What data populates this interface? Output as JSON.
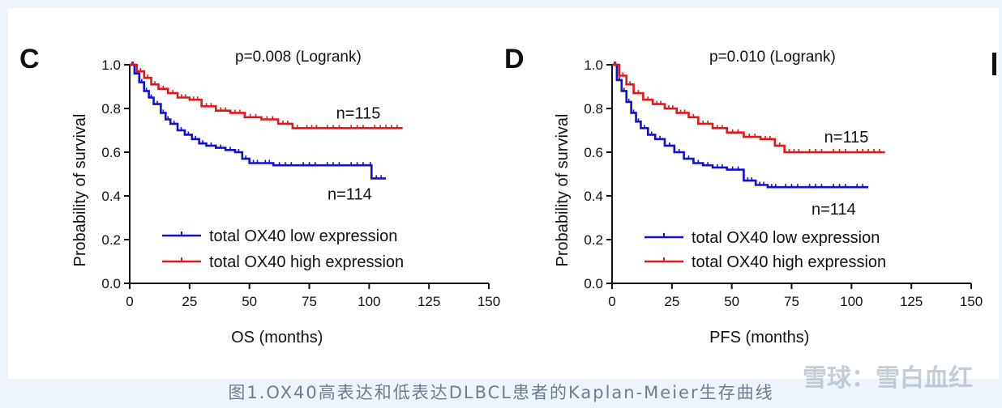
{
  "caption": "图1.OX40高表达和低表达DLBCL患者的Kaplan-Meier生存曲线",
  "watermark": "雪球：雪白血红",
  "colors": {
    "low": "#1010cc",
    "high": "#e01818",
    "axis": "#111111"
  },
  "chart_data": [
    {
      "type": "line",
      "panel_letter": "C",
      "p_value_text": "p=0.008 (Logrank)",
      "xlabel": "OS (months)",
      "ylabel": "Probability of survival",
      "xlim": [
        0,
        150
      ],
      "ylim": [
        0,
        1.0
      ],
      "xticks": [
        "0",
        "25",
        "50",
        "75",
        "100",
        "125",
        "150"
      ],
      "yticks": [
        "0.0",
        "0.2",
        "0.4",
        "0.6",
        "0.8",
        "1.0"
      ],
      "legend": [
        "total OX40 low expression",
        "total OX40 high expression"
      ],
      "series": [
        {
          "name": "total OX40 low expression",
          "color_key": "low",
          "n_label": "n=114",
          "x": [
            0,
            2,
            4,
            6,
            8,
            10,
            13,
            15,
            17,
            20,
            23,
            26,
            29,
            32,
            36,
            40,
            44,
            47,
            50,
            55,
            60,
            70,
            80,
            90,
            100,
            101,
            107
          ],
          "y": [
            1.0,
            0.96,
            0.92,
            0.88,
            0.85,
            0.82,
            0.78,
            0.75,
            0.73,
            0.7,
            0.68,
            0.66,
            0.64,
            0.63,
            0.62,
            0.61,
            0.6,
            0.57,
            0.55,
            0.55,
            0.54,
            0.54,
            0.54,
            0.54,
            0.54,
            0.48,
            0.48
          ]
        },
        {
          "name": "total OX40 high expression",
          "color_key": "high",
          "n_label": "n=115",
          "x": [
            0,
            3,
            6,
            9,
            12,
            16,
            20,
            25,
            30,
            36,
            42,
            48,
            55,
            62,
            68,
            72,
            80,
            90,
            100,
            114
          ],
          "y": [
            1.0,
            0.97,
            0.94,
            0.91,
            0.89,
            0.87,
            0.85,
            0.84,
            0.81,
            0.79,
            0.78,
            0.76,
            0.75,
            0.73,
            0.71,
            0.71,
            0.71,
            0.71,
            0.71,
            0.71
          ]
        }
      ]
    },
    {
      "type": "line",
      "panel_letter": "D",
      "p_value_text": "p=0.010 (Logrank)",
      "xlabel": "PFS (months)",
      "ylabel": "Probability of survival",
      "xlim": [
        0,
        150
      ],
      "ylim": [
        0,
        1.0
      ],
      "xticks": [
        "0",
        "25",
        "50",
        "75",
        "100",
        "125",
        "150"
      ],
      "yticks": [
        "0.0",
        "0.2",
        "0.4",
        "0.6",
        "0.8",
        "1.0"
      ],
      "legend": [
        "total OX40 low expression",
        "total OX40 high expression"
      ],
      "series": [
        {
          "name": "total OX40 low expression",
          "color_key": "low",
          "n_label": "n=114",
          "x": [
            0,
            2,
            4,
            6,
            8,
            10,
            12,
            15,
            18,
            22,
            26,
            30,
            34,
            38,
            42,
            48,
            55,
            60,
            65,
            70,
            80,
            90,
            100,
            107
          ],
          "y": [
            1.0,
            0.93,
            0.88,
            0.83,
            0.78,
            0.74,
            0.71,
            0.68,
            0.66,
            0.63,
            0.6,
            0.57,
            0.55,
            0.54,
            0.53,
            0.52,
            0.47,
            0.45,
            0.44,
            0.44,
            0.44,
            0.44,
            0.44,
            0.44
          ]
        },
        {
          "name": "total OX40 high expression",
          "color_key": "high",
          "n_label": "n=115",
          "x": [
            0,
            3,
            6,
            9,
            13,
            17,
            22,
            27,
            32,
            36,
            42,
            48,
            55,
            62,
            68,
            72,
            80,
            90,
            100,
            114
          ],
          "y": [
            1.0,
            0.95,
            0.91,
            0.87,
            0.84,
            0.82,
            0.8,
            0.78,
            0.76,
            0.73,
            0.71,
            0.69,
            0.67,
            0.66,
            0.63,
            0.6,
            0.6,
            0.6,
            0.6,
            0.6
          ]
        }
      ]
    }
  ]
}
